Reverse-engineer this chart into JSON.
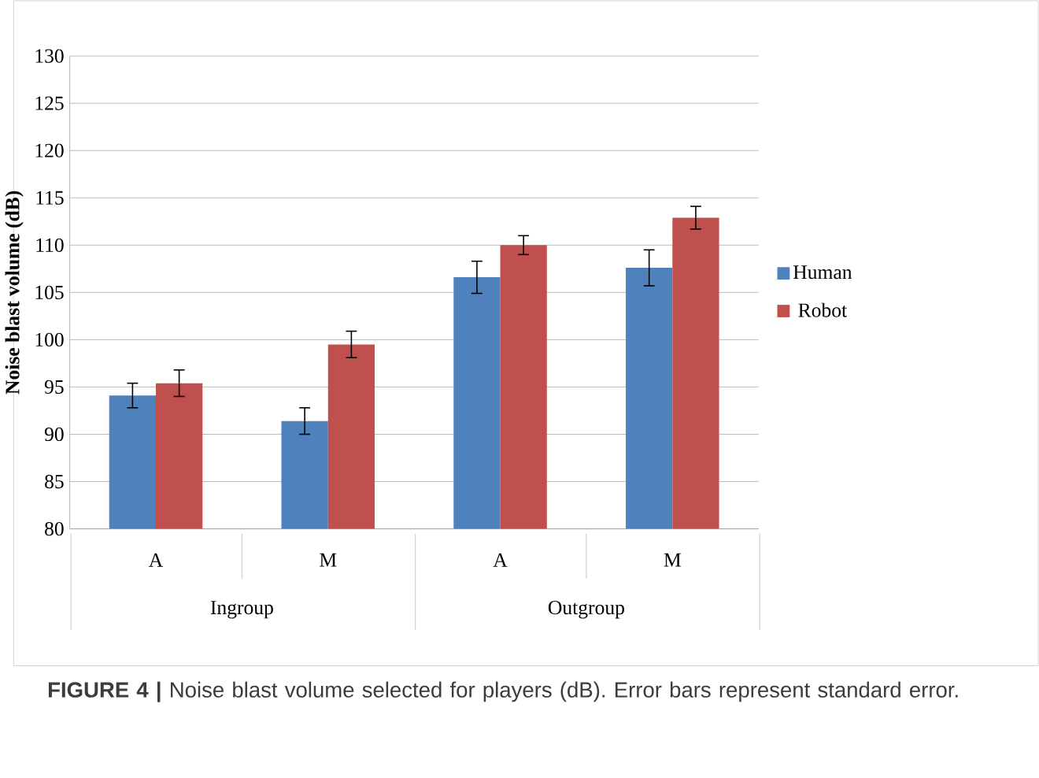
{
  "chart_data": {
    "type": "bar",
    "ylabel": "Noise blast volume (dB)",
    "categories": [
      "A",
      "M",
      "A",
      "M"
    ],
    "series": [
      {
        "name": "Human",
        "color": "#4f81bd",
        "values": [
          94.1,
          91.4,
          106.6,
          107.6
        ],
        "errors": [
          1.3,
          1.4,
          1.7,
          1.9
        ]
      },
      {
        "name": "Robot",
        "color": "#c0504d",
        "values": [
          95.4,
          99.5,
          110.0,
          112.9
        ],
        "errors": [
          1.4,
          1.4,
          1.0,
          1.2
        ]
      }
    ],
    "ylim": [
      80,
      130
    ],
    "yticks": [
      80,
      85,
      90,
      95,
      100,
      105,
      110,
      115,
      120,
      125,
      130
    ],
    "grid": "y",
    "legend": "right",
    "annotations": [
      "Ingroup",
      "Outgroup",
      "**FIGURE 4 |** Noise blast volume selected for players (dB). Error bars represent standard error."
    ]
  }
}
